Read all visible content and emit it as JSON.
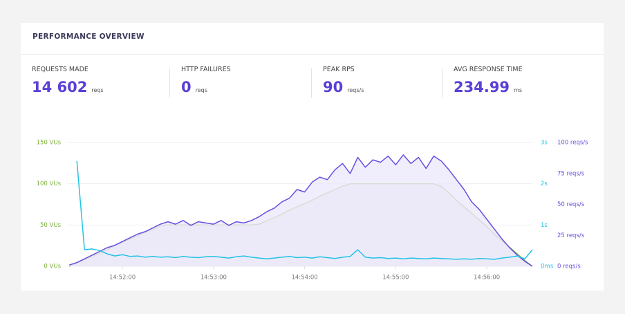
{
  "header": {
    "title": "PERFORMANCE OVERVIEW"
  },
  "stats": [
    {
      "label": "REQUESTS MADE",
      "value": "14 602",
      "unit": "reqs"
    },
    {
      "label": "HTTP FAILURES",
      "value": "0",
      "unit": "reqs"
    },
    {
      "label": "PEAK RPS",
      "value": "90",
      "unit": "reqs/s"
    },
    {
      "label": "AVG RESPONSE TIME",
      "value": "234.99",
      "unit": "ms"
    }
  ],
  "chart_data": {
    "type": "line",
    "x": [
      53485,
      53490,
      53495,
      53500,
      53505,
      53510,
      53515,
      53520,
      53525,
      53530,
      53535,
      53540,
      53545,
      53550,
      53555,
      53560,
      53565,
      53570,
      53575,
      53580,
      53585,
      53590,
      53595,
      53600,
      53605,
      53610,
      53615,
      53620,
      53625,
      53630,
      53635,
      53640,
      53645,
      53650,
      53655,
      53660,
      53665,
      53670,
      53675,
      53680,
      53685,
      53690,
      53695,
      53700,
      53705,
      53710,
      53715,
      53720,
      53725,
      53730,
      53735,
      53740,
      53745,
      53750,
      53755,
      53760,
      53765,
      53770,
      53775,
      53780,
      53785,
      53790
    ],
    "xlim": [
      53484,
      53790
    ],
    "xticks": [
      {
        "value": 53520,
        "label": "14:52:00"
      },
      {
        "value": 53580,
        "label": "14:53:00"
      },
      {
        "value": 53640,
        "label": "14:54:00"
      },
      {
        "value": 53700,
        "label": "14:55:00"
      },
      {
        "value": 53760,
        "label": "14:56:00"
      }
    ],
    "ylim": [
      0,
      150
    ],
    "yticks": [
      {
        "value": 0,
        "label": "0 VUs"
      },
      {
        "value": 50,
        "label": "50 VUs"
      },
      {
        "value": 100,
        "label": "100 VUs"
      },
      {
        "value": 150,
        "label": "150 VUs"
      }
    ],
    "y2lim": [
      0,
      3
    ],
    "y2ticks": [
      {
        "value": 0,
        "label": "0ms"
      },
      {
        "value": 1,
        "label": "1s"
      },
      {
        "value": 2,
        "label": "2s"
      },
      {
        "value": 3,
        "label": "3s"
      }
    ],
    "y3lim": [
      0,
      100
    ],
    "y3ticks": [
      {
        "value": 0,
        "label": "0 reqs/s"
      },
      {
        "value": 25,
        "label": "25 reqs/s"
      },
      {
        "value": 50,
        "label": "50 reqs/s"
      },
      {
        "value": 75,
        "label": "75 reqs/s"
      },
      {
        "value": 100,
        "label": "100 reqs/s"
      }
    ],
    "grid": true,
    "series": [
      {
        "color": "#7fb13f",
        "fill": "#e3e8ea",
        "axis": "y",
        "values": [
          0,
          4,
          8,
          12,
          16,
          20,
          25,
          29,
          33,
          37,
          41,
          45,
          49,
          50,
          50,
          50,
          50,
          50,
          50,
          50,
          50,
          50,
          50,
          50,
          50,
          51,
          55,
          59,
          63,
          68,
          72,
          76,
          80,
          85,
          89,
          93,
          97,
          100,
          100,
          100,
          100,
          100,
          100,
          100,
          100,
          100,
          100,
          100,
          100,
          97,
          89,
          80,
          72,
          64,
          56,
          48,
          39,
          31,
          23,
          15,
          7,
          0
        ]
      },
      {
        "color": "#6a4ee0",
        "fill": "#ece8fb",
        "axis": "y3",
        "values": [
          1,
          3,
          6,
          9,
          12,
          15,
          17,
          20,
          23,
          26,
          28,
          31,
          34,
          36,
          34,
          37,
          33,
          36,
          35,
          34,
          37,
          33,
          36,
          35,
          37,
          40,
          44,
          47,
          52,
          55,
          62,
          60,
          68,
          72,
          70,
          78,
          83,
          75,
          88,
          80,
          86,
          84,
          89,
          82,
          90,
          83,
          88,
          79,
          89,
          85,
          78,
          70,
          62,
          52,
          46,
          38,
          30,
          22,
          15,
          9,
          4,
          0
        ]
      },
      {
        "color": "#22c3e6",
        "axis": "y2",
        "values": [
          null,
          2.55,
          0.4,
          0.42,
          0.38,
          0.3,
          0.25,
          0.28,
          0.24,
          0.25,
          0.22,
          0.24,
          0.22,
          0.23,
          0.21,
          0.24,
          0.22,
          0.21,
          0.23,
          0.24,
          0.22,
          0.2,
          0.23,
          0.25,
          0.22,
          0.2,
          0.18,
          0.2,
          0.22,
          0.24,
          0.21,
          0.22,
          0.2,
          0.23,
          0.21,
          0.19,
          0.22,
          0.24,
          0.4,
          0.22,
          0.2,
          0.21,
          0.19,
          0.2,
          0.18,
          0.2,
          0.19,
          0.18,
          0.2,
          0.19,
          0.18,
          0.17,
          0.18,
          0.17,
          0.19,
          0.18,
          0.17,
          0.2,
          0.22,
          0.25,
          0.18,
          0.4
        ]
      }
    ]
  }
}
